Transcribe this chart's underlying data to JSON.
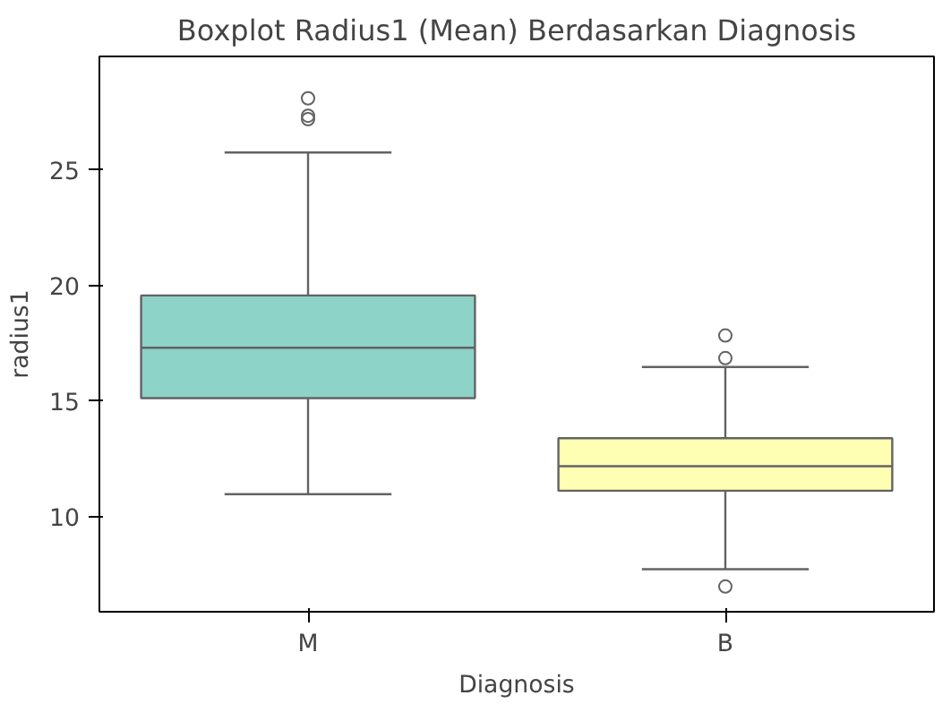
{
  "chart_data": {
    "type": "box",
    "title": "Boxplot Radius1 (Mean) Berdasarkan Diagnosis",
    "xlabel": "Diagnosis",
    "ylabel": "radius1",
    "categories": [
      "M",
      "B"
    ],
    "colors": [
      "#8dd3c7",
      "#ffffb3"
    ],
    "boxes": [
      {
        "low": 10.98,
        "q1": 15.13,
        "median": 17.31,
        "q3": 19.57,
        "high": 25.75,
        "outliers": [
          28.09,
          27.34,
          27.19
        ]
      },
      {
        "low": 7.74,
        "q1": 11.13,
        "median": 12.19,
        "q3": 13.4,
        "high": 16.48,
        "outliers": [
          17.84,
          16.86,
          6.99
        ]
      }
    ],
    "ylim": [
      5.9,
      29.9
    ],
    "yticks": [
      10,
      15,
      20,
      25
    ],
    "grid": false
  }
}
